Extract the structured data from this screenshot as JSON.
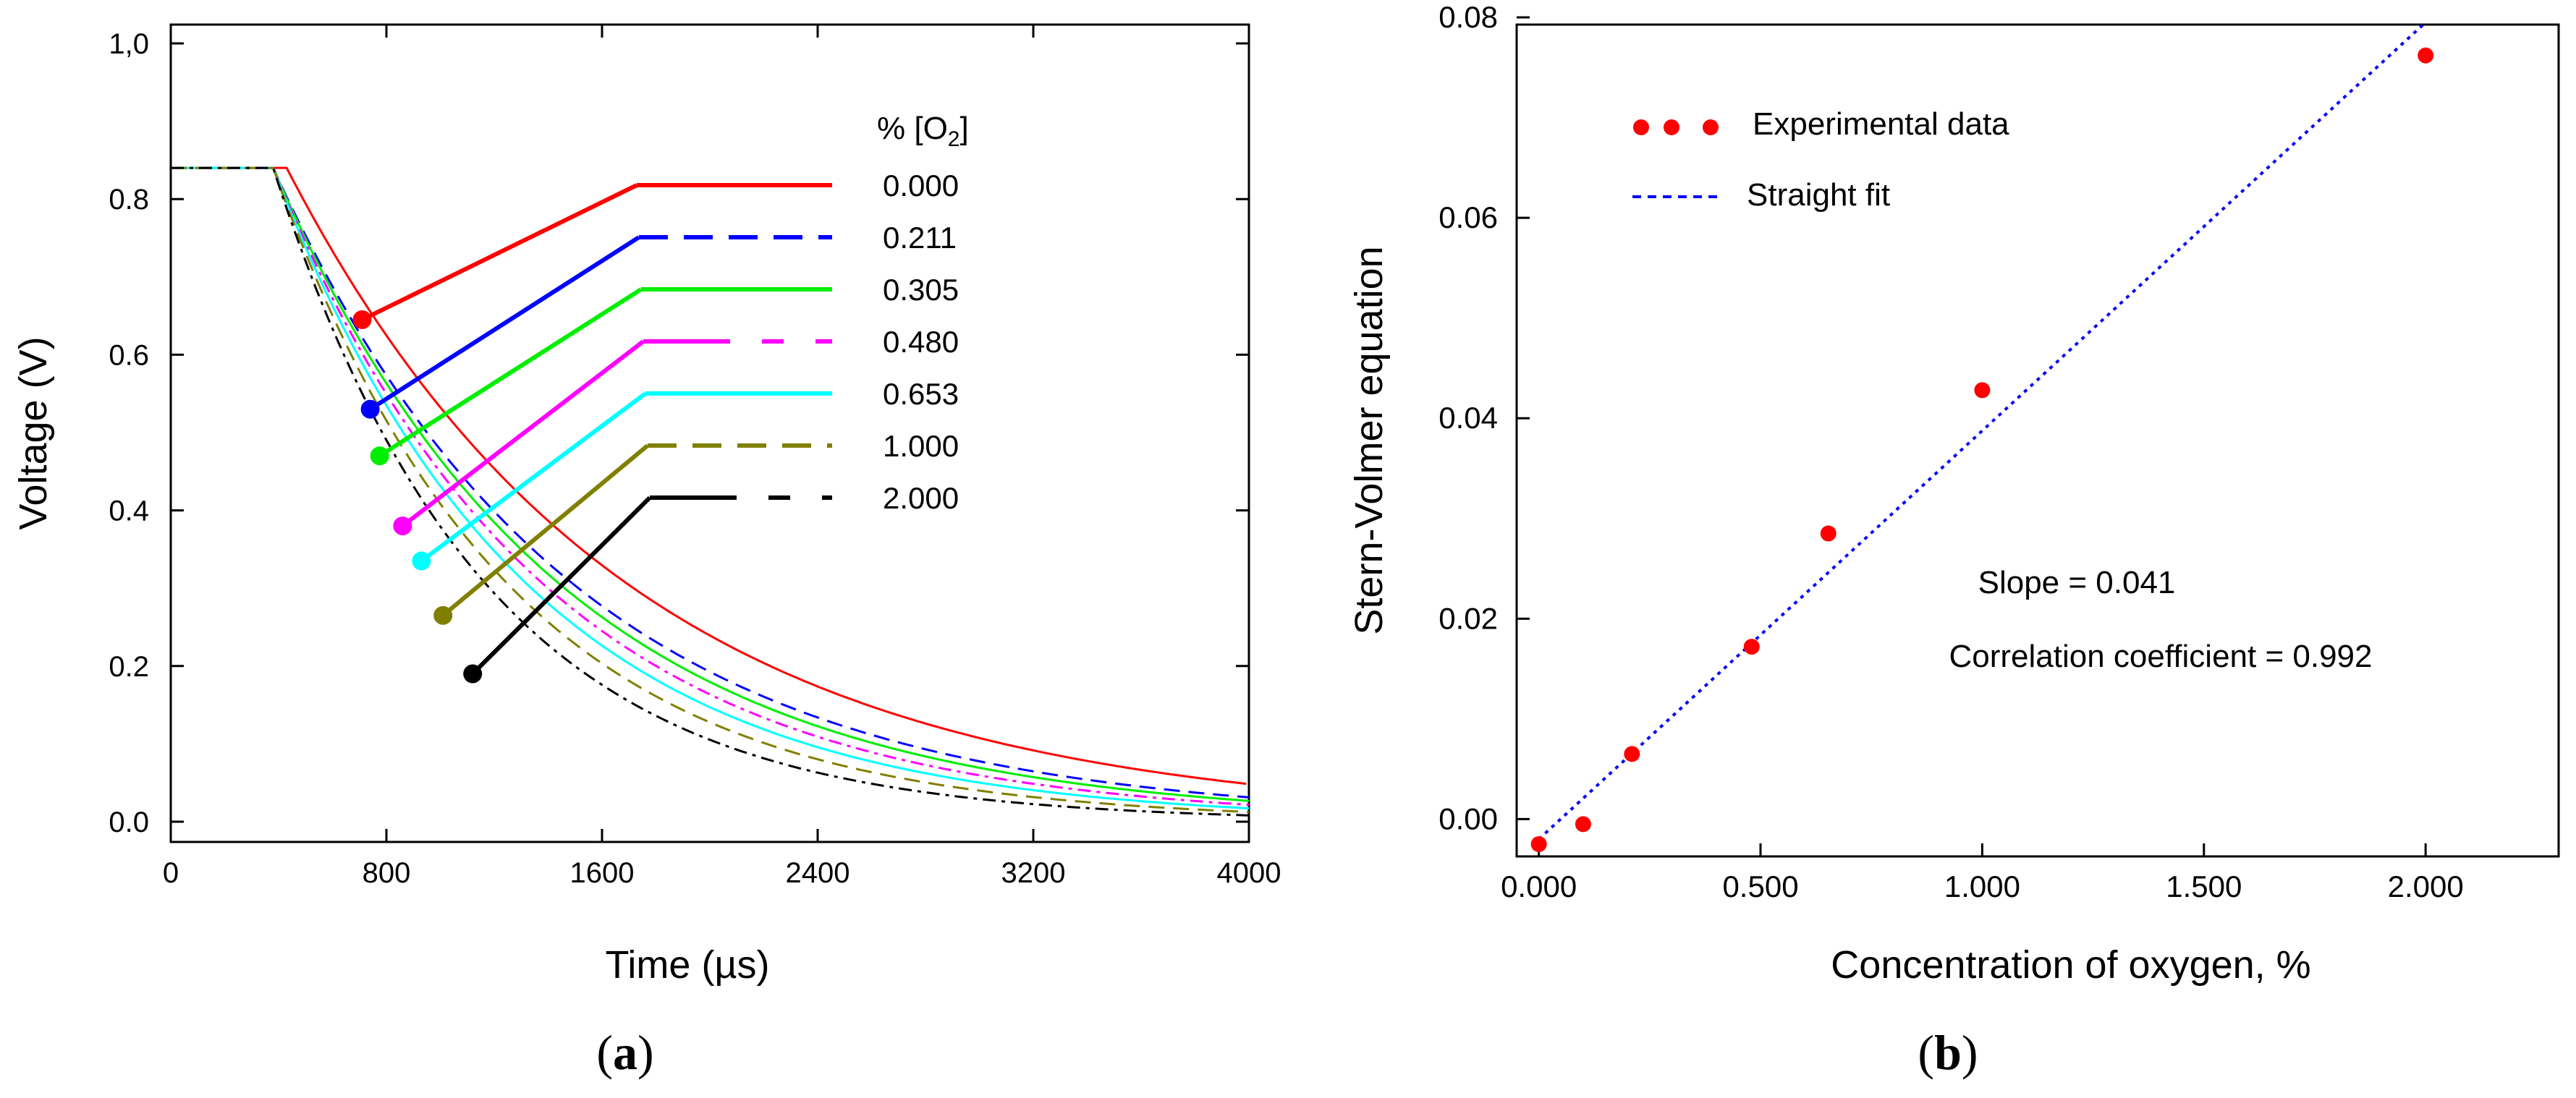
{
  "chart_data": [
    {
      "type": "line",
      "panel_label_prefix": "(",
      "panel_label_letter": "a",
      "panel_label_suffix": ")",
      "xlabel": "Time (µs)",
      "ylabel": "Voltage (V)",
      "xlim": [
        0,
        4000
      ],
      "ylim": [
        0.0,
        1.0
      ],
      "x_ticks": [
        0,
        800,
        1600,
        2400,
        3200,
        4000
      ],
      "x_tick_labels": [
        "0",
        "800",
        "1600",
        "2400",
        "3200",
        "4000"
      ],
      "y_ticks": [
        0.0,
        0.2,
        0.4,
        0.6,
        0.8,
        1.0
      ],
      "y_tick_labels": [
        "0.0",
        "0.2",
        "0.4",
        "0.6",
        "0.8",
        "1,0"
      ],
      "legend_title_prefix": "% [O",
      "legend_title_sub": "2",
      "legend_title_suffix": "]",
      "plateau_voltage": 0.84,
      "decay_start_us": 380,
      "series": [
        {
          "name": "0.000",
          "color": "#ff0000",
          "dash": "solid",
          "tau_us": 1250,
          "delay_us": 50,
          "marker": {
            "x": 710,
            "y": 0.645
          }
        },
        {
          "name": "0.211",
          "color": "#0000ff",
          "dash": "dashed",
          "tau_us": 1100,
          "delay_us": 0,
          "marker": {
            "x": 740,
            "y": 0.53
          }
        },
        {
          "name": "0.305",
          "color": "#00ee00",
          "dash": "solid",
          "tau_us": 1050,
          "delay_us": 0,
          "marker": {
            "x": 775,
            "y": 0.47
          }
        },
        {
          "name": "0.480",
          "color": "#ff00ff",
          "dash": "dashdot",
          "tau_us": 990,
          "delay_us": 0,
          "marker": {
            "x": 860,
            "y": 0.38
          }
        },
        {
          "name": "0.653",
          "color": "#00ffff",
          "dash": "solid",
          "tau_us": 930,
          "delay_us": 0,
          "marker": {
            "x": 930,
            "y": 0.335
          }
        },
        {
          "name": "1.000",
          "color": "#808000",
          "dash": "dashed",
          "tau_us": 860,
          "delay_us": 0,
          "marker": {
            "x": 1010,
            "y": 0.265
          }
        },
        {
          "name": "2.000",
          "color": "#000000",
          "dash": "dashdot",
          "tau_us": 780,
          "delay_us": 0,
          "marker": {
            "x": 1120,
            "y": 0.19
          }
        }
      ]
    },
    {
      "type": "scatter",
      "panel_label_prefix": "(",
      "panel_label_letter": "b",
      "panel_label_suffix": ")",
      "xlabel": "Concentration of oxygen, %",
      "ylabel": "Stern-Volmer equation",
      "xlim": [
        -0.05,
        2.3
      ],
      "ylim": [
        -0.003,
        0.08
      ],
      "x_ticks": [
        0.0,
        0.5,
        1.0,
        1.5,
        2.0
      ],
      "x_tick_labels": [
        "0.000",
        "0.500",
        "1.000",
        "1.500",
        "2.000"
      ],
      "y_ticks": [
        0.0,
        0.02,
        0.04,
        0.06,
        0.08
      ],
      "y_tick_labels": [
        "0.00",
        "0.02",
        "0.04",
        "0.06",
        "0.08"
      ],
      "series": [
        {
          "name": "Experimental data",
          "color": "#ff0000",
          "x": [
            0.0,
            0.1,
            0.21,
            0.48,
            0.653,
            1.0,
            2.0
          ],
          "y": [
            -0.0025,
            -0.0005,
            0.0065,
            0.0172,
            0.0285,
            0.0428,
            0.0762
          ]
        },
        {
          "name": "Straight fit",
          "color": "#0000ff",
          "style": "dotted",
          "x": [
            0.0,
            2.0
          ],
          "y": [
            -0.002,
            0.0795
          ]
        }
      ],
      "annotations": [
        "Slope = 0.041",
        "Correlation coefficient = 0.992"
      ]
    }
  ]
}
